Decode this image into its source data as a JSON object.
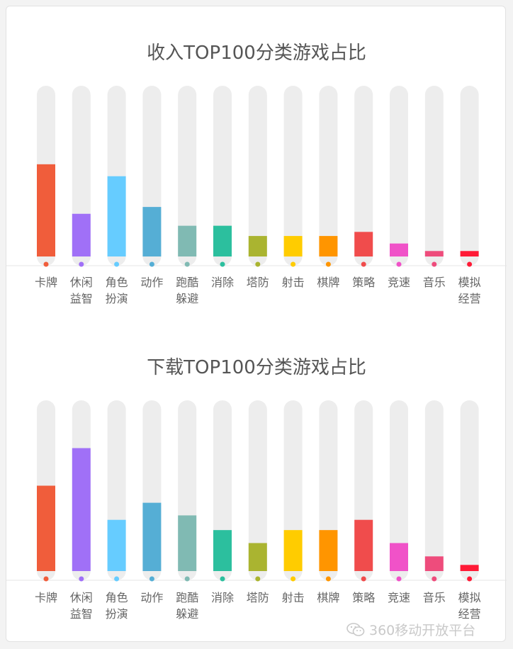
{
  "chart_data": [
    {
      "type": "bar",
      "title": "收入TOP100分类游戏占比",
      "categories": [
        "卡牌",
        "休闲\n益智",
        "角色\n扮演",
        "动作",
        "跑酷\n躲避",
        "消除",
        "塔防",
        "射击",
        "棋牌",
        "策略",
        "竞速",
        "音乐",
        "模拟\n经营"
      ],
      "values": [
        27,
        12.5,
        23.5,
        14.5,
        9,
        9,
        6,
        6,
        6,
        7.2,
        3.8,
        1.6,
        1.6
      ],
      "ylim": [
        0,
        50
      ],
      "colors": [
        "#f05d3b",
        "#a070f7",
        "#66ccff",
        "#55aed5",
        "#80bab3",
        "#2cbf9e",
        "#aab430",
        "#ffcc00",
        "#ff9500",
        "#f04c4c",
        "#f052c8",
        "#ee4c7c",
        "#ff1a36"
      ],
      "track_color": "#ededed",
      "grid": false
    },
    {
      "type": "bar",
      "title": "下载TOP100分类游戏占比",
      "categories": [
        "卡牌",
        "休闲\n益智",
        "角色\n扮演",
        "动作",
        "跑酷\n躲避",
        "消除",
        "塔防",
        "射击",
        "棋牌",
        "策略",
        "竞速",
        "音乐",
        "模拟\n经营"
      ],
      "values": [
        25,
        36,
        15,
        20,
        16.3,
        12,
        8.2,
        12,
        12,
        15,
        8.2,
        4.3,
        1.8
      ],
      "ylim": [
        0,
        50
      ],
      "colors": [
        "#f05d3b",
        "#a070f7",
        "#66ccff",
        "#55aed5",
        "#80bab3",
        "#2cbf9e",
        "#aab430",
        "#ffcc00",
        "#ff9500",
        "#f04c4c",
        "#f052c8",
        "#ee4c7c",
        "#ff1a36"
      ],
      "track_color": "#ededed",
      "grid": false
    }
  ],
  "watermark": {
    "icon": "wechat-icon",
    "text": "360移动开放平台"
  }
}
